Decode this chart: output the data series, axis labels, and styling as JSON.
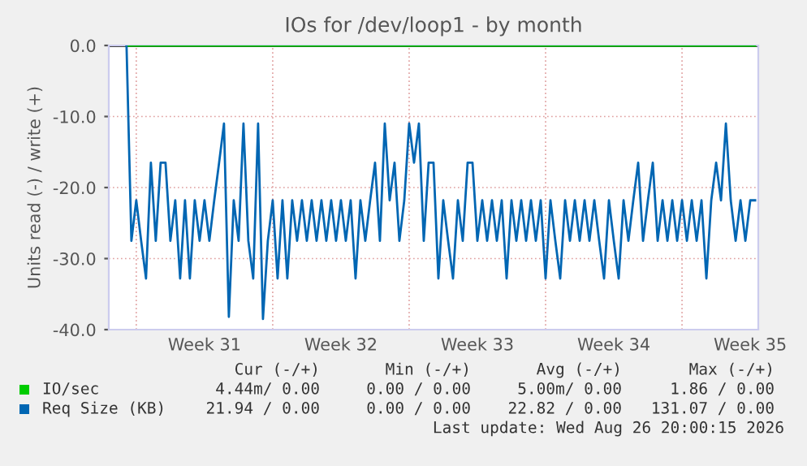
{
  "chart_data": {
    "type": "line",
    "title": "IOs for /dev/loop1 - by month",
    "ylabel": "Units read (-) / write (+)",
    "categories": [
      null,
      null,
      null,
      null,
      null,
      null,
      null,
      null,
      null,
      null,
      null,
      null,
      null,
      null,
      null,
      null,
      "Week 31",
      null,
      null,
      null,
      null,
      null,
      null,
      null,
      null,
      null,
      null,
      null,
      null,
      null,
      null,
      null,
      null,
      null,
      null,
      null,
      null,
      null,
      null,
      null,
      null,
      null,
      null,
      null,
      "Week 32",
      null,
      null,
      null,
      null,
      null,
      null,
      null,
      null,
      null,
      null,
      null,
      null,
      null,
      null,
      null,
      null,
      null,
      null,
      null,
      null,
      null,
      null,
      null,
      null,
      null,
      null,
      null,
      "Week 33",
      null,
      null,
      null,
      null,
      null,
      null,
      null,
      null,
      null,
      null,
      null,
      null,
      null,
      null,
      null,
      null,
      null,
      null,
      null,
      null,
      null,
      null,
      null,
      null,
      null,
      null,
      null,
      "Week 34",
      null,
      null,
      null,
      null,
      null,
      null,
      null,
      null,
      null,
      null,
      null,
      null,
      null,
      null,
      null,
      null,
      null,
      null,
      null,
      null,
      null,
      null,
      null,
      null,
      null,
      null,
      null,
      "Week 35",
      null
    ],
    "ylim": [
      -40,
      0
    ],
    "yticks": [
      {
        "value": 0,
        "label": "0.0"
      },
      {
        "value": -10,
        "label": "-10.0"
      },
      {
        "value": -20,
        "label": "-20.0"
      },
      {
        "value": -30,
        "label": "-30.0"
      },
      {
        "value": -40,
        "label": "-40.0"
      }
    ],
    "grid": true,
    "legend": "bottom left",
    "ref_lines": [
      {
        "axis": "y",
        "value": 0,
        "color": "#000000"
      }
    ],
    "series": [
      {
        "name": "IO/sec",
        "color": "#00cc00",
        "values": [
          0,
          0,
          0,
          0,
          0,
          0,
          0,
          0,
          0,
          0,
          0,
          0,
          0,
          0,
          0,
          0,
          0,
          0,
          0,
          0,
          0,
          0,
          0,
          0,
          0,
          0,
          0,
          0,
          0,
          0,
          0,
          0,
          0,
          0,
          0,
          0,
          0,
          0,
          0,
          0,
          0,
          0,
          0,
          0,
          0,
          0,
          0,
          0,
          0,
          0,
          0,
          0,
          0,
          0,
          0,
          0,
          0,
          0,
          0,
          0,
          0,
          0,
          0,
          0,
          0,
          0,
          0,
          0,
          0,
          0,
          0,
          0,
          0,
          0,
          0,
          0,
          0,
          0,
          0,
          0,
          0,
          0,
          0,
          0,
          0,
          0,
          0,
          0,
          0,
          0,
          0,
          0,
          0,
          0,
          0,
          0,
          0,
          0,
          0,
          0,
          0,
          0,
          0,
          0,
          0,
          0,
          0,
          0,
          0,
          0,
          0,
          0,
          0,
          0,
          0,
          0,
          0,
          0,
          0,
          0,
          0,
          0,
          0,
          0,
          0,
          0,
          0,
          0,
          0,
          0
        ]
      },
      {
        "name": "Req Size (KB)",
        "color": "#0066b3",
        "values": [
          0,
          -27.5,
          -21.8,
          -27.5,
          -32.8,
          -16.5,
          -27.5,
          -16.5,
          -16.5,
          -27.5,
          -21.8,
          -32.8,
          -21.8,
          -32.8,
          -21.8,
          -27.5,
          -21.8,
          -27.5,
          -21.8,
          -16.5,
          -11.0,
          -38.2,
          -21.8,
          -27.5,
          -11.0,
          -27.5,
          -32.8,
          -11.0,
          -38.5,
          -27.5,
          -21.8,
          -32.8,
          -21.8,
          -32.8,
          -21.8,
          -27.5,
          -21.8,
          -27.5,
          -21.8,
          -27.5,
          -21.8,
          -27.5,
          -21.8,
          -27.5,
          -21.8,
          -27.5,
          -21.8,
          -32.8,
          -21.8,
          -27.5,
          -21.8,
          -16.5,
          -27.5,
          -11.0,
          -21.8,
          -16.5,
          -27.5,
          -21.8,
          -11.0,
          -16.5,
          -11.0,
          -27.5,
          -16.5,
          -16.5,
          -32.8,
          -21.8,
          -27.5,
          -32.8,
          -21.8,
          -27.5,
          -16.5,
          -16.5,
          -27.5,
          -21.8,
          -27.5,
          -21.8,
          -27.5,
          -21.8,
          -32.8,
          -21.8,
          -27.5,
          -21.8,
          -27.5,
          -21.8,
          -27.5,
          -21.8,
          -32.8,
          -21.8,
          -27.5,
          -32.8,
          -21.8,
          -27.5,
          -21.8,
          -27.5,
          -21.8,
          -27.5,
          -21.8,
          -27.5,
          -32.8,
          -21.8,
          -27.5,
          -32.8,
          -21.8,
          -27.5,
          -21.8,
          -16.5,
          -27.5,
          -21.8,
          -16.5,
          -27.5,
          -21.8,
          -27.5,
          -21.8,
          -27.5,
          -21.8,
          -27.5,
          -21.8,
          -27.5,
          -21.8,
          -32.8,
          -21.8,
          -16.5,
          -21.8,
          -11.0,
          -21.8,
          -27.5,
          -21.8,
          -27.5,
          -21.8,
          -21.8
        ]
      }
    ],
    "annotations": [
      "Cur (-/+)",
      "Min (-/+)",
      "Avg (-/+)",
      "Max (-/+)",
      "4.44m/ 0.00",
      "0.00 / 0.00",
      "5.00m/ 0.00",
      "1.86 / 0.00",
      "21.94 / 0.00",
      "0.00 / 0.00",
      "22.82 / 0.00",
      "131.07 / 0.00",
      "Last update: Wed Aug 26 20:00:15 2026"
    ]
  }
}
